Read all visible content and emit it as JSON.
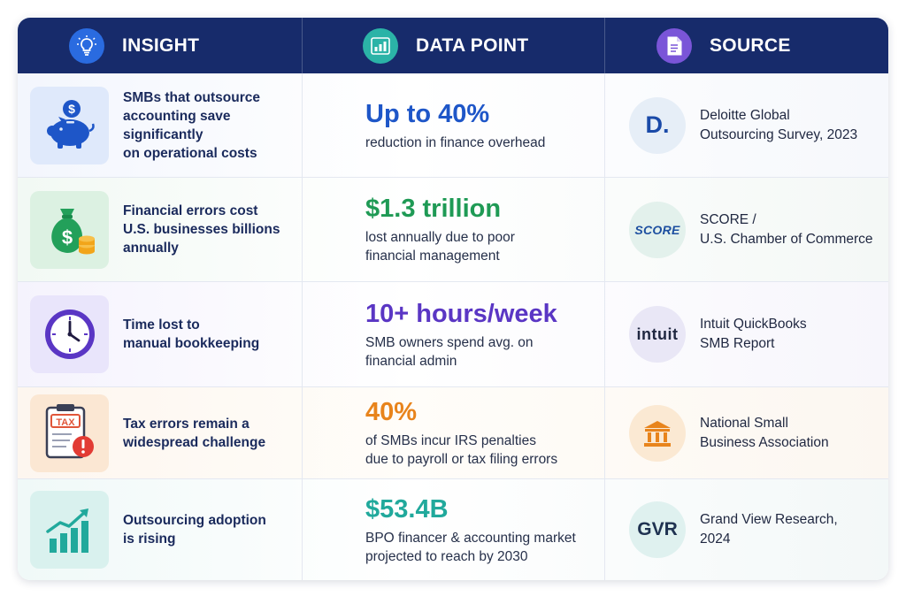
{
  "header": {
    "insight": "INSIGHT",
    "data_point": "DATA POINT",
    "source": "SOURCE"
  },
  "rows": [
    {
      "insight": "SMBs that outsource\naccounting save significantly\non operational costs",
      "data_value": "Up to 40%",
      "data_desc": "reduction in finance overhead",
      "source_logo": "D.",
      "source": "Deloitte Global\nOutsourcing Survey, 2023",
      "icon": "piggy-bank-icon",
      "accent": "#1e56c8"
    },
    {
      "insight": "Financial errors cost\nU.S. businesses billions\nannually",
      "data_value": "$1.3 trillion",
      "data_desc": "lost annually due to poor\nfinancial management",
      "source_logo": "SCORE",
      "source": "SCORE /\nU.S. Chamber of Commerce",
      "icon": "money-bag-icon",
      "accent": "#1f9a55"
    },
    {
      "insight": "Time lost to\nmanual bookkeeping",
      "data_value": "10+ hours/week",
      "data_desc": "SMB owners spend avg. on\nfinancial admin",
      "source_logo": "intuit",
      "source": "Intuit QuickBooks\nSMB Report",
      "icon": "clock-icon",
      "accent": "#5a36c4"
    },
    {
      "insight": "Tax errors remain a\nwidespread challenge",
      "data_value": "40%",
      "data_desc": "of SMBs incur IRS penalties\ndue to payroll or tax filing errors",
      "source_logo": "",
      "source": "National Small\nBusiness Association",
      "icon": "tax-clipboard-icon",
      "accent": "#e8841c",
      "clipboard_label": "TAX"
    },
    {
      "insight": "Outsourcing adoption\nis rising",
      "data_value": "$53.4B",
      "data_desc": "BPO financer & accounting market\nprojected to reach by 2030",
      "source_logo": "GVR",
      "source": "Grand View Research,\n2024",
      "icon": "growth-chart-icon",
      "accent": "#21a99c"
    }
  ],
  "colors": {
    "header_bg": "#172b6b",
    "insight_icon_bg": "#2a6be0",
    "data_icon_bg": "#2bb3a7",
    "source_icon_bg": "#7a55d8"
  }
}
